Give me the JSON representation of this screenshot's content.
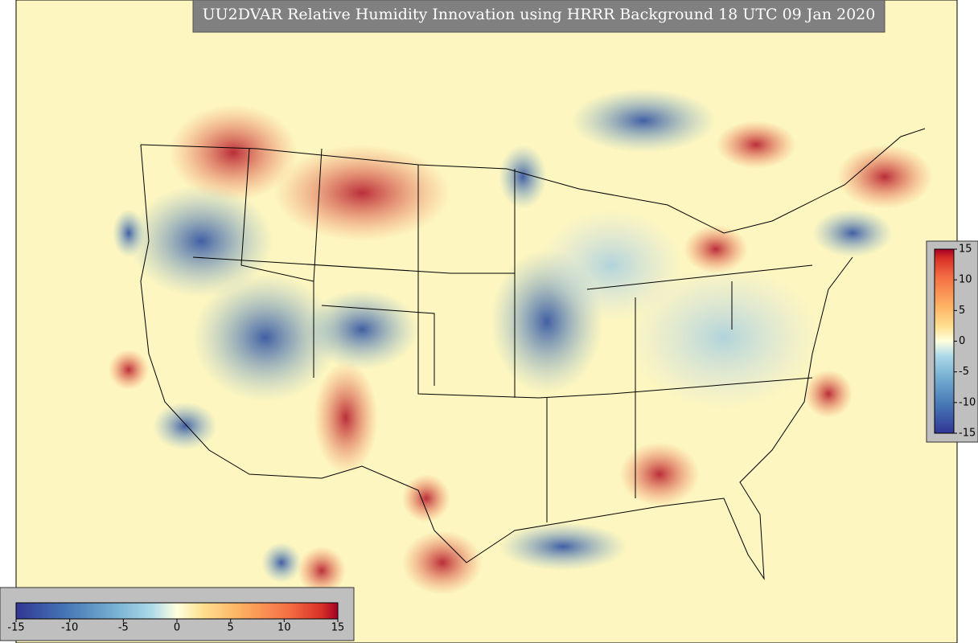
{
  "title": "UU2DVAR Relative Humidity Innovation using HRRR Background 18 UTC 09 Jan 2020",
  "colorbars": [
    {
      "orientation": "horizontal",
      "lim": [
        -15,
        15
      ],
      "ticks": [
        -15,
        -10,
        -5,
        0,
        5,
        10,
        15
      ]
    },
    {
      "orientation": "vertical",
      "lim": [
        -15,
        15
      ],
      "ticks": [
        -15,
        -10,
        -5,
        0,
        5,
        10,
        15
      ]
    }
  ]
}
